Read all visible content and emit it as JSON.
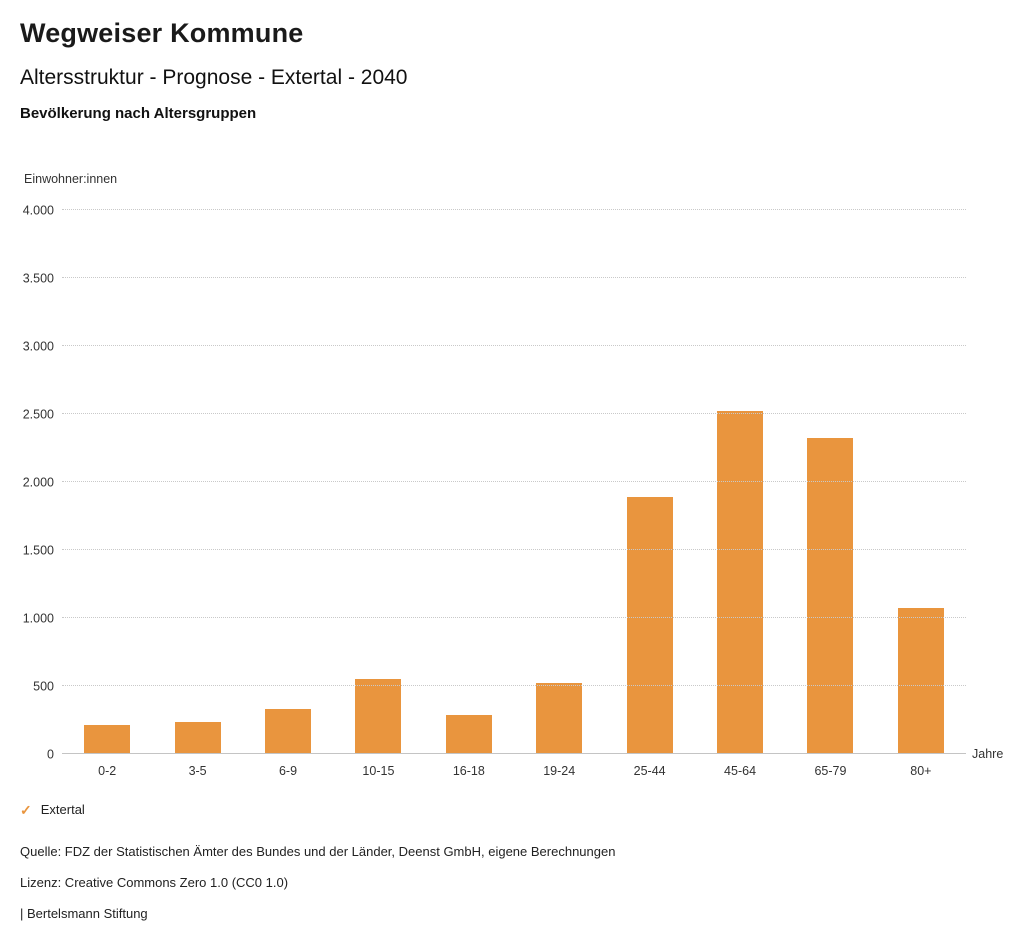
{
  "header": {
    "title": "Wegweiser Kommune",
    "subtitle": "Altersstruktur - Prognose - Extertal - 2040",
    "chart_heading": "Bevölkerung nach Altersgruppen"
  },
  "chart_data": {
    "type": "bar",
    "title": "Bevölkerung nach Altersgruppen",
    "ylabel": "Einwohner:innen",
    "xlabel": "Jahre",
    "categories": [
      "0-2",
      "3-5",
      "6-9",
      "10-15",
      "16-18",
      "19-24",
      "25-44",
      "45-64",
      "65-79",
      "80+"
    ],
    "series": [
      {
        "name": "Extertal",
        "values": [
          210,
          235,
          330,
          550,
          290,
          525,
          1890,
          2520,
          2320,
          1070
        ]
      }
    ],
    "ylim": [
      0,
      4000
    ],
    "ytick_step": 500,
    "ytick_labels": [
      "0",
      "500",
      "1.000",
      "1.500",
      "2.000",
      "2.500",
      "3.000",
      "3.500",
      "4.000"
    ],
    "grid": true,
    "bar_color": "#E9953E",
    "legend": {
      "position": "bottom-left",
      "items": [
        {
          "label": "Extertal",
          "color": "#E9953E"
        }
      ]
    }
  },
  "footer": {
    "source": "Quelle: FDZ der Statistischen Ämter des Bundes und der Länder, Deenst GmbH, eigene Berechnungen",
    "license": "Lizenz: Creative Commons Zero 1.0 (CC0 1.0)",
    "attribution": "| Bertelsmann Stiftung"
  }
}
